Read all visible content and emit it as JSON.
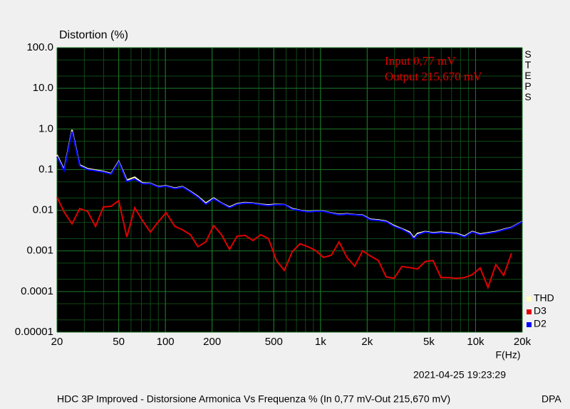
{
  "chart_data": {
    "type": "line",
    "title": "Distortion (%)",
    "x_label": "F(Hz)",
    "annotations": [
      "Input 0,77 mV",
      "Output 215,670 mV"
    ],
    "side_label": "STEPS",
    "timestamp": "2021-04-25 19:23:29",
    "footer": "HDC 3P Improved - Distorsione Armonica Vs Frequenza % (In 0,77 mV-Out 215,670 mV)",
    "footer_right": "DPA",
    "log_x": true,
    "log_y": true,
    "grid": true,
    "legend": "lower right",
    "xlim": [
      20,
      20000
    ],
    "ylim": [
      1e-05,
      100
    ],
    "xticks": [
      20,
      50,
      100,
      200,
      500,
      {
        "value": 1000,
        "label": "1k"
      },
      {
        "value": 2000,
        "label": "2k"
      },
      {
        "value": 5000,
        "label": "5k"
      },
      {
        "value": 10000,
        "label": "10k"
      },
      {
        "value": 20000,
        "label": "20k"
      }
    ],
    "yticks": [
      1e-05,
      0.0001,
      0.001,
      0.01,
      0.1,
      {
        "value": 1,
        "label": "1.0"
      },
      {
        "value": 10,
        "label": "10.0"
      },
      {
        "value": 100,
        "label": "100.0"
      }
    ],
    "series": [
      {
        "name": "THD",
        "color": "#ffffc0",
        "x": [
          20,
          22.2,
          25,
          28,
          31.5,
          39.8,
          44.7,
          50,
          56.4,
          63.4,
          71.2,
          80,
          90,
          101,
          115,
          129,
          145,
          162,
          182,
          205,
          230,
          259,
          290,
          327,
          367,
          412,
          462,
          520,
          584,
          656,
          737,
          828,
          929,
          1044,
          1173,
          1318,
          1482,
          1664,
          1869,
          2100,
          2360,
          2650,
          2978,
          3343,
          3758,
          4000,
          4220,
          4740,
          5320,
          5980,
          6715,
          7550,
          8480,
          9530,
          10700,
          12020,
          13510,
          15170,
          17050,
          20000
        ],
        "values": [
          0.23,
          0.1,
          0.95,
          0.13,
          0.105,
          0.09,
          0.08,
          0.16,
          0.055,
          0.065,
          0.047,
          0.046,
          0.038,
          0.04,
          0.035,
          0.038,
          0.029,
          0.022,
          0.015,
          0.02,
          0.015,
          0.012,
          0.0145,
          0.0155,
          0.015,
          0.014,
          0.0135,
          0.014,
          0.0138,
          0.011,
          0.01,
          0.0093,
          0.0096,
          0.0095,
          0.0086,
          0.0079,
          0.0082,
          0.0078,
          0.0076,
          0.006,
          0.0058,
          0.0054,
          0.0042,
          0.0035,
          0.0029,
          0.0021,
          0.0027,
          0.003,
          0.0028,
          0.0029,
          0.0028,
          0.0027,
          0.0023,
          0.003,
          0.0026,
          0.0028,
          0.003,
          0.0034,
          0.0038,
          0.0053
        ]
      },
      {
        "name": "D3",
        "color": "#e00000",
        "x": [
          20,
          22.2,
          25,
          28,
          31.5,
          35.4,
          39.8,
          44.7,
          50,
          56.4,
          63.4,
          71.2,
          80,
          90,
          101,
          115,
          129,
          145,
          162,
          182,
          205,
          230,
          259,
          290,
          327,
          367,
          412,
          462,
          520,
          584,
          656,
          737,
          828,
          929,
          1044,
          1173,
          1318,
          1482,
          1664,
          1869,
          2100,
          2360,
          2650,
          2978,
          3343,
          3758,
          4220,
          4740,
          5320,
          5980,
          6715,
          7550,
          8480,
          9530,
          10700,
          12020,
          13510,
          15170,
          17050
        ],
        "values": [
          0.021,
          0.0091,
          0.0046,
          0.011,
          0.0094,
          0.004,
          0.012,
          0.0125,
          0.0173,
          0.0022,
          0.0115,
          0.0056,
          0.0029,
          0.0052,
          0.0087,
          0.004,
          0.0033,
          0.0025,
          0.00127,
          0.00166,
          0.0042,
          0.0025,
          0.00109,
          0.0023,
          0.0024,
          0.0018,
          0.0025,
          0.002,
          0.00058,
          0.00033,
          0.00095,
          0.0015,
          0.00127,
          0.00103,
          0.00069,
          0.00078,
          0.00166,
          0.00069,
          0.00042,
          0.001,
          0.00075,
          0.00058,
          0.00023,
          0.00021,
          0.00041,
          0.00039,
          0.00036,
          0.00055,
          0.00058,
          0.00022,
          0.00022,
          0.00021,
          0.00022,
          0.00026,
          0.00038,
          0.000126,
          0.00046,
          0.00025,
          0.00087
        ]
      },
      {
        "name": "D2",
        "color": "#0000ff",
        "x": [
          20,
          22.2,
          25,
          28,
          31.5,
          39.8,
          44.7,
          50,
          56.4,
          63.4,
          71.2,
          80,
          90,
          101,
          115,
          129,
          145,
          162,
          182,
          205,
          230,
          259,
          290,
          327,
          367,
          412,
          462,
          520,
          584,
          656,
          737,
          828,
          929,
          1044,
          1173,
          1318,
          1482,
          1664,
          1869,
          2100,
          2360,
          2650,
          2978,
          3343,
          3758,
          4000,
          4220,
          4740,
          5320,
          5980,
          6715,
          7550,
          8480,
          9530,
          10700,
          12020,
          13510,
          15170,
          17050,
          20000
        ],
        "values": [
          0.21,
          0.094,
          0.86,
          0.124,
          0.1,
          0.087,
          0.077,
          0.152,
          0.051,
          0.058,
          0.045,
          0.045,
          0.037,
          0.039,
          0.034,
          0.037,
          0.028,
          0.021,
          0.014,
          0.019,
          0.0147,
          0.0115,
          0.014,
          0.015,
          0.0147,
          0.0136,
          0.013,
          0.0136,
          0.0136,
          0.0106,
          0.0098,
          0.0091,
          0.0094,
          0.0094,
          0.0084,
          0.0077,
          0.008,
          0.0077,
          0.0074,
          0.0058,
          0.0056,
          0.0052,
          0.004,
          0.0034,
          0.0027,
          0.00196,
          0.0025,
          0.0029,
          0.0027,
          0.0028,
          0.0027,
          0.0026,
          0.0022,
          0.0029,
          0.0025,
          0.0027,
          0.0029,
          0.0033,
          0.0037,
          0.0052
        ]
      }
    ]
  }
}
